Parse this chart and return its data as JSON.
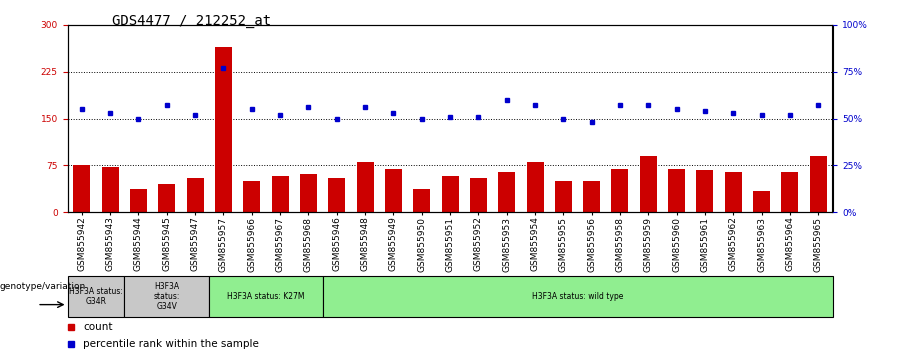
{
  "title": "GDS4477 / 212252_at",
  "samples": [
    "GSM855942",
    "GSM855943",
    "GSM855944",
    "GSM855945",
    "GSM855947",
    "GSM855957",
    "GSM855966",
    "GSM855967",
    "GSM855968",
    "GSM855946",
    "GSM855948",
    "GSM855949",
    "GSM855950",
    "GSM855951",
    "GSM855952",
    "GSM855953",
    "GSM855954",
    "GSM855955",
    "GSM855956",
    "GSM855958",
    "GSM855959",
    "GSM855960",
    "GSM855961",
    "GSM855962",
    "GSM855963",
    "GSM855964",
    "GSM855965"
  ],
  "counts": [
    75,
    72,
    38,
    45,
    55,
    265,
    50,
    58,
    62,
    55,
    80,
    70,
    38,
    58,
    55,
    65,
    80,
    50,
    50,
    70,
    90,
    70,
    68,
    65,
    35,
    65,
    90
  ],
  "percentiles": [
    55,
    53,
    50,
    57,
    52,
    77,
    55,
    52,
    56,
    50,
    56,
    53,
    50,
    51,
    51,
    60,
    57,
    50,
    48,
    57,
    57,
    55,
    54,
    53,
    52,
    52,
    57
  ],
  "bar_color": "#cc0000",
  "dot_color": "#0000cc",
  "left_ylim": [
    0,
    300
  ],
  "right_ylim": [
    0,
    100
  ],
  "left_yticks": [
    0,
    75,
    150,
    225,
    300
  ],
  "left_yticklabels": [
    "0",
    "75",
    "150",
    "225",
    "300"
  ],
  "right_yticks": [
    0,
    25,
    50,
    75,
    100
  ],
  "right_yticklabels": [
    "0%",
    "25%",
    "50%",
    "75%",
    "100%"
  ],
  "hlines": [
    75,
    150,
    225
  ],
  "bar_color_hex": "#cc0000",
  "dot_color_hex": "#0000cc",
  "groups": [
    {
      "label": "H3F3A status:\nG34R",
      "start": 0,
      "end": 1,
      "color": "#c8c8c8"
    },
    {
      "label": "H3F3A\nstatus:\nG34V",
      "start": 2,
      "end": 4,
      "color": "#c8c8c8"
    },
    {
      "label": "H3F3A status: K27M",
      "start": 5,
      "end": 8,
      "color": "#90ee90"
    },
    {
      "label": "H3F3A status: wild type",
      "start": 9,
      "end": 26,
      "color": "#90ee90"
    }
  ],
  "genotype_label": "genotype/variation",
  "legend_count_label": "count",
  "legend_pct_label": "percentile rank within the sample",
  "title_fontsize": 10,
  "tick_fontsize": 6.5,
  "ann_fontsize": 6.5
}
